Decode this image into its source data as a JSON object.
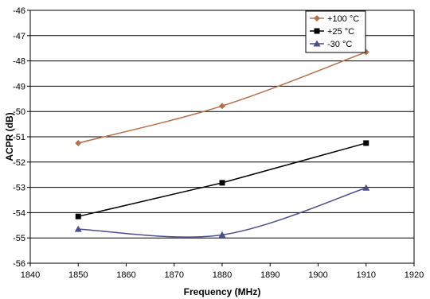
{
  "chart_data": {
    "type": "line",
    "title": "",
    "xlabel": "Frequency (MHz)",
    "ylabel": "ACPR (dB)",
    "xlim": [
      1840,
      1920
    ],
    "ylim": [
      -56,
      -46
    ],
    "xticks": [
      "1840",
      "1850",
      "1860",
      "1870",
      "1880",
      "1890",
      "1900",
      "1910",
      "1920"
    ],
    "yticks": [
      "-46",
      "-47",
      "-48",
      "-49",
      "-50",
      "-51",
      "-52",
      "-53",
      "-54",
      "-55",
      "-56"
    ],
    "grid": "horizontal",
    "legend_position": "top-right",
    "series": [
      {
        "name": "+100 °C",
        "color": "#B5704A",
        "marker": "diamond",
        "smooth": true,
        "points": [
          [
            1850,
            -51.25
          ],
          [
            1880,
            -49.78
          ],
          [
            1910,
            -47.65
          ]
        ]
      },
      {
        "name": "+25 °C",
        "color": "#000000",
        "marker": "square",
        "smooth": false,
        "points": [
          [
            1850,
            -54.15
          ],
          [
            1880,
            -52.82
          ],
          [
            1910,
            -51.25
          ]
        ]
      },
      {
        "name": "-30 °C",
        "color": "#4B4E8C",
        "marker": "triangle",
        "smooth": true,
        "points": [
          [
            1850,
            -54.65
          ],
          [
            1880,
            -54.88
          ],
          [
            1910,
            -53.02
          ]
        ]
      }
    ]
  }
}
